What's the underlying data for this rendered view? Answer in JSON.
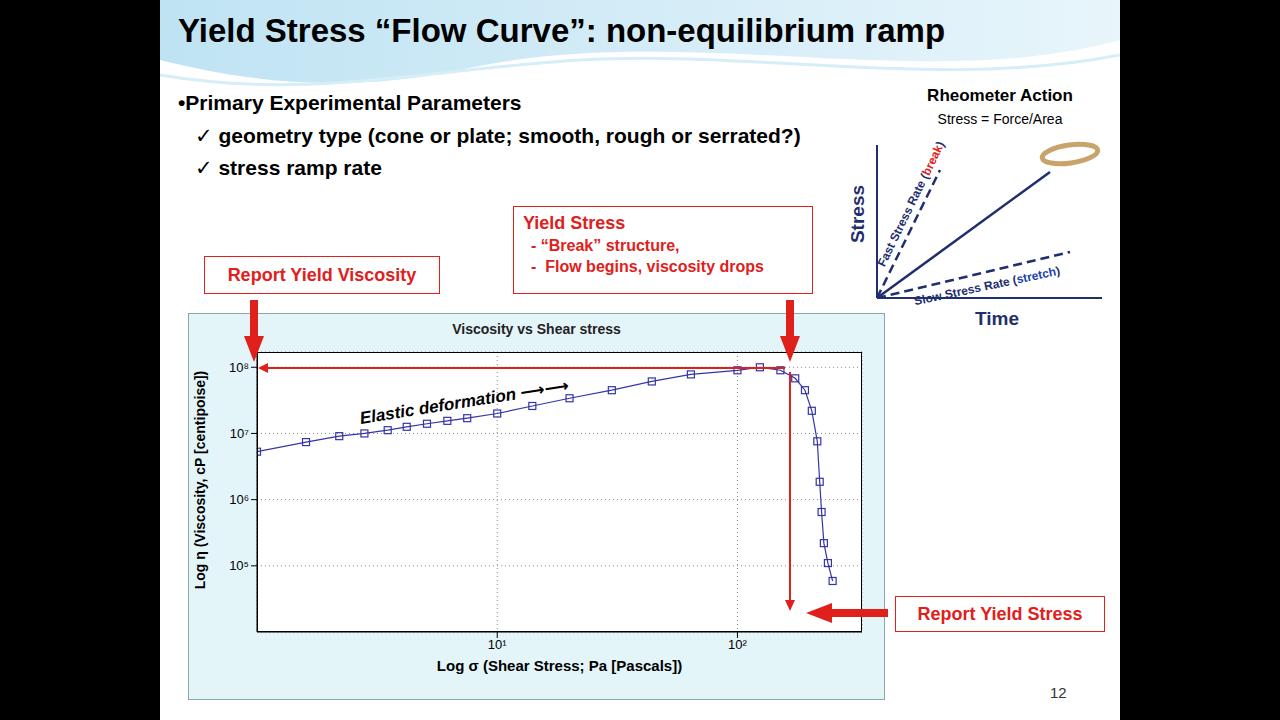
{
  "slide": {
    "title": "Yield Stress “Flow Curve”: non-equilibrium ramp",
    "bullet": "•Primary Experimental Parameters",
    "checks": [
      "✓ geometry type (cone or plate; smooth, rough or serrated?)",
      "✓ stress ramp rate"
    ],
    "page_number": 12,
    "callouts": {
      "yield_stress": {
        "title": "Yield Stress",
        "lines": [
          "- “Break” structure,",
          "-  Flow begins, viscosity drops"
        ]
      },
      "report_yield_viscosity": "Report Yield Viscosity",
      "report_yield_stress": "Report Yield Stress"
    },
    "rheometer": {
      "title": "Rheometer Action",
      "subtitle": "Stress = Force/Area",
      "y_label": "Stress",
      "x_label": "Time",
      "fast": {
        "before": "Fast Stress Rate (",
        "word": "break",
        "after": ")"
      },
      "slow": {
        "before": "Slow Stress Rate (",
        "word": "stretch",
        "after": ")"
      }
    }
  },
  "chart_data": {
    "type": "line",
    "title": "Viscosity vs Shear stress",
    "x_label": "Log σ (Shear Stress; Pa [Pascals])",
    "y_label": "Log η (Viscosity, cP [centipoise])",
    "annotation": "Elastic deformation ⟶⟶",
    "x": [
      1.0,
      1.6,
      2.2,
      2.8,
      3.5,
      4.2,
      5.1,
      6.2,
      7.5,
      10,
      14,
      20,
      30,
      44,
      64,
      100,
      124,
      151,
      174,
      191,
      204,
      215,
      220,
      224,
      229,
      238,
      249
    ],
    "values": [
      5300000,
      7400000,
      9100000,
      10000000,
      11200000,
      12600000,
      14000000,
      15500000,
      17000000,
      20000000,
      26000000,
      34000000,
      45000000,
      61000000,
      78000000,
      90000000,
      100000000,
      90000000,
      68000000,
      45000000,
      22000000,
      7600000,
      1860000,
      650000,
      220000,
      110000,
      59000
    ],
    "color": "#3535a8",
    "marker": "square",
    "log": true,
    "grid": true,
    "xlim": [
      1,
      330
    ],
    "xticks": [
      {
        "value": 10,
        "label": "10¹"
      },
      {
        "value": 100,
        "label": "10²"
      }
    ],
    "ylim": [
      10000,
      170000000
    ],
    "yticks": [
      {
        "value": 100000,
        "label": "10⁵"
      },
      {
        "value": 1000000,
        "label": "10⁶"
      },
      {
        "value": 10000000,
        "label": "10⁷"
      },
      {
        "value": 100000000,
        "label": "10⁸"
      }
    ]
  }
}
